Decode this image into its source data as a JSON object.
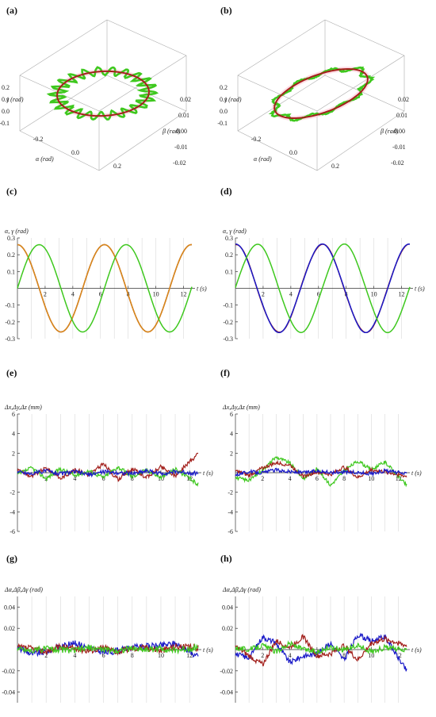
{
  "colors": {
    "red": "#a3201c",
    "green": "#3ec81e",
    "blue": "#1a1ac8",
    "orange": "#d88a1a",
    "pink": "#ffc4d4"
  },
  "panels": {
    "a": {
      "label": "(a)"
    },
    "b": {
      "label": "(b)"
    },
    "c": {
      "label": "(c)"
    },
    "d": {
      "label": "(d)"
    },
    "e": {
      "label": "(e)"
    },
    "f": {
      "label": "(f)"
    },
    "g": {
      "label": "(g)"
    },
    "h": {
      "label": "(h)"
    }
  },
  "chart_data": [
    {
      "id": "a",
      "type": "line3d",
      "axis_labels": {
        "y": "γ (rad)",
        "alpha": "α (rad)",
        "beta": "β (rad)"
      },
      "alpha_ticks": [
        "-0.2",
        "0.0",
        "0.2"
      ],
      "gamma_ticks": [
        "0.2",
        "0.1",
        "0.0",
        "-0.1"
      ],
      "beta_ticks": [
        "0.02",
        "0.01",
        "0.00",
        "-0.01",
        "-0.02"
      ],
      "curves": [
        {
          "color": "red",
          "shape": "ellipse"
        },
        {
          "color": "green",
          "shape": "ellipse with large oscillations"
        }
      ]
    },
    {
      "id": "b",
      "type": "line3d",
      "axis_labels": {
        "y": "γ (rad)",
        "alpha": "α (rad)",
        "beta": "β (rad)"
      },
      "alpha_ticks": [
        "-0.2",
        "0.0",
        "0.2"
      ],
      "gamma_ticks": [
        "0.2",
        "0.1",
        "0.0",
        "-0.1"
      ],
      "beta_ticks": [
        "0.02",
        "0.01",
        "0.00",
        "-0.01",
        "-0.02"
      ],
      "curves": [
        {
          "color": "red",
          "shape": "tilted ellipse"
        },
        {
          "color": "green",
          "shape": "tilted ellipse with oscillations"
        }
      ]
    },
    {
      "id": "c",
      "type": "line",
      "ylabel": "α, γ (rad)",
      "xlabel": "t (s)",
      "xlim": [
        0,
        12.6
      ],
      "ylim": [
        -0.3,
        0.3
      ],
      "xticks": [
        "2",
        "4",
        "6",
        "8",
        "10",
        "12"
      ],
      "yticks": [
        "0.3",
        "0.2",
        "0.1",
        "-0.1",
        "-0.2",
        "-0.3"
      ],
      "series": [
        {
          "color": "red",
          "values_desc": "α = 0.26 cos t",
          "x": [
            0,
            1.57,
            3.14,
            4.71,
            6.28,
            7.85,
            9.42,
            11.0,
            12.57
          ],
          "y": [
            0.26,
            0,
            -0.26,
            0,
            0.26,
            0,
            -0.26,
            0,
            0.26
          ]
        },
        {
          "color": "orange",
          "x": [
            0,
            1.57,
            3.14,
            4.71,
            6.28,
            7.85,
            9.42,
            11.0,
            12.57
          ],
          "y": [
            0.26,
            0,
            -0.26,
            0,
            0.26,
            0,
            -0.26,
            0,
            0.26
          ]
        },
        {
          "color": "green",
          "x": [
            0,
            1.57,
            3.14,
            4.71,
            6.28,
            7.85,
            9.42,
            11.0,
            12.57
          ],
          "y": [
            0,
            0.26,
            0,
            -0.26,
            0,
            0.26,
            0,
            -0.26,
            0
          ]
        }
      ]
    },
    {
      "id": "d",
      "type": "line",
      "ylabel": "α, γ (rad)",
      "xlabel": "t (s)",
      "xlim": [
        0,
        12.6
      ],
      "ylim": [
        -0.3,
        0.3
      ],
      "xticks": [
        "2",
        "4",
        "6",
        "8",
        "10",
        "12"
      ],
      "yticks": [
        "0.3",
        "0.2",
        "0.1",
        "-0.1",
        "-0.2",
        "-0.3"
      ],
      "series": [
        {
          "color": "red",
          "x": [
            0,
            1.57,
            3.14,
            4.71,
            6.28,
            7.85,
            9.42,
            11.0,
            12.57
          ],
          "y": [
            0.26,
            0,
            -0.26,
            0,
            0.26,
            0,
            -0.26,
            0,
            0.26
          ]
        },
        {
          "color": "blue",
          "x": [
            0,
            1.57,
            3.14,
            4.71,
            6.28,
            7.85,
            9.42,
            11.0,
            12.57
          ],
          "y": [
            0.26,
            0,
            -0.26,
            0,
            0.26,
            0,
            -0.26,
            0,
            0.26
          ]
        },
        {
          "color": "green",
          "x": [
            0,
            1.57,
            3.14,
            4.71,
            6.28,
            7.85,
            9.42,
            11.0,
            12.57
          ],
          "y": [
            0,
            0.26,
            0,
            -0.26,
            0,
            0.26,
            0,
            -0.26,
            0
          ]
        }
      ]
    },
    {
      "id": "e",
      "type": "line",
      "ylabel": "Δx,Δy,Δz (mm)",
      "xlabel": "t (s)",
      "xlim": [
        0,
        12.6
      ],
      "ylim": [
        -6,
        6
      ],
      "xticks": [
        "2",
        "4",
        "6",
        "8",
        "10",
        "12"
      ],
      "yticks": [
        "6",
        "4",
        "2",
        "-2",
        "-4",
        "-6"
      ],
      "series": [
        {
          "color": "red",
          "amplitude": 1.0,
          "x": [
            0,
            1,
            2,
            3,
            4,
            5,
            6,
            7,
            8,
            9,
            10,
            11,
            12
          ],
          "y": [
            0.3,
            -0.4,
            0.5,
            -0.6,
            0.3,
            -0.2,
            0.9,
            -0.7,
            0.4,
            -0.5,
            0.6,
            -0.3,
            1.1
          ]
        },
        {
          "color": "green",
          "amplitude": 0.9,
          "x": [
            0,
            1,
            2,
            3,
            4,
            5,
            6,
            7,
            8,
            9,
            10,
            11,
            12
          ],
          "y": [
            -0.2,
            0.5,
            -0.6,
            0.4,
            -0.3,
            0.2,
            -0.5,
            0.6,
            -0.4,
            0.3,
            -0.5,
            0.4,
            -0.6
          ]
        },
        {
          "color": "blue",
          "amplitude": 0.3,
          "x": [
            0,
            1,
            2,
            3,
            4,
            5,
            6,
            7,
            8,
            9,
            10,
            11,
            12
          ],
          "y": [
            0.1,
            -0.1,
            0.2,
            -0.1,
            0.1,
            -0.2,
            0.1,
            0,
            -0.1,
            0.2,
            -0.1,
            0.1,
            0
          ]
        }
      ]
    },
    {
      "id": "f",
      "type": "line",
      "ylabel": "Δx,Δy,Δz (mm)",
      "xlabel": "t (s)",
      "xlim": [
        0,
        12.6
      ],
      "ylim": [
        -6,
        6
      ],
      "xticks": [
        "2",
        "4",
        "6",
        "8",
        "10",
        "12"
      ],
      "yticks": [
        "6",
        "4",
        "2",
        "-2",
        "-4",
        "-6"
      ],
      "series": [
        {
          "color": "green",
          "x": [
            0,
            1,
            2,
            3,
            4,
            5,
            6,
            7,
            8,
            9,
            10,
            11,
            12
          ],
          "y": [
            -0.5,
            -0.8,
            0.3,
            1.6,
            1.0,
            -0.6,
            0.4,
            -1.3,
            0.2,
            1.2,
            0.3,
            1.1,
            -0.4
          ]
        },
        {
          "color": "red",
          "x": [
            0,
            1,
            2,
            3,
            4,
            5,
            6,
            7,
            8,
            9,
            10,
            11,
            12
          ],
          "y": [
            0.2,
            -0.3,
            0.5,
            1.0,
            0.8,
            -0.4,
            0.1,
            -0.2,
            0.6,
            -0.5,
            0.3,
            0.1,
            -0.2
          ]
        },
        {
          "color": "blue",
          "x": [
            0,
            1,
            2,
            3,
            4,
            5,
            6,
            7,
            8,
            9,
            10,
            11,
            12
          ],
          "y": [
            -0.2,
            0.1,
            0,
            0.3,
            0.1,
            0,
            0.2,
            0,
            0.1,
            0,
            -0.1,
            0.2,
            0
          ]
        }
      ]
    },
    {
      "id": "g",
      "type": "line",
      "ylabel": "Δα,Δβ,Δγ (rad)",
      "xlabel": "t (s)",
      "xlim": [
        0,
        12.6
      ],
      "ylim": [
        -0.05,
        0.05
      ],
      "xticks": [
        "2",
        "4",
        "6",
        "8",
        "10",
        "12"
      ],
      "yticks": [
        "0.04",
        "0.02",
        "-0.02",
        "-0.04"
      ],
      "series": [
        {
          "color": "blue",
          "x": [
            0,
            1,
            2,
            3,
            4,
            5,
            6,
            7,
            8,
            9,
            10,
            11,
            12
          ],
          "y": [
            0.002,
            -0.004,
            -0.002,
            0.003,
            0.006,
            0.002,
            -0.003,
            -0.001,
            0.002,
            0.003,
            0.004,
            0.006,
            -0.002
          ]
        },
        {
          "color": "red",
          "x": [
            0,
            1,
            2,
            3,
            4,
            5,
            6,
            7,
            8,
            9,
            10,
            11,
            12
          ],
          "y": [
            0.002,
            0.001,
            -0.002,
            0.003,
            0.001,
            -0.001,
            0.002,
            -0.002,
            0.001,
            0.002,
            -0.001,
            0.003,
            0.002
          ]
        },
        {
          "color": "green",
          "x": [
            0,
            1,
            2,
            3,
            4,
            5,
            6,
            7,
            8,
            9,
            10,
            11,
            12
          ],
          "y": [
            0.001,
            -0.001,
            0.001,
            0,
            -0.001,
            0.002,
            0,
            -0.001,
            0.001,
            0,
            0.001,
            -0.001,
            0.001
          ]
        }
      ]
    },
    {
      "id": "h",
      "type": "line",
      "ylabel": "Δα,Δβ,Δγ (rad)",
      "xlabel": "t (s)",
      "xlim": [
        0,
        12.6
      ],
      "ylim": [
        -0.05,
        0.05
      ],
      "xticks": [
        "2",
        "4",
        "6",
        "8",
        "10",
        "12"
      ],
      "yticks": [
        "0.04",
        "0.02",
        "-0.02",
        "-0.04"
      ],
      "series": [
        {
          "color": "blue",
          "x": [
            0,
            1,
            2,
            3,
            4,
            5,
            6,
            7,
            8,
            9,
            10,
            11,
            12
          ],
          "y": [
            -0.004,
            -0.008,
            0.012,
            0.006,
            -0.012,
            -0.006,
            -0.004,
            0.006,
            -0.01,
            0.014,
            0.008,
            0.012,
            -0.008
          ]
        },
        {
          "color": "red",
          "x": [
            0,
            1,
            2,
            3,
            4,
            5,
            6,
            7,
            8,
            9,
            10,
            11,
            12
          ],
          "y": [
            0.003,
            -0.006,
            -0.014,
            0.008,
            0.002,
            0.012,
            -0.006,
            -0.004,
            0.004,
            -0.01,
            0.006,
            0.01,
            0.006
          ]
        },
        {
          "color": "green",
          "x": [
            0,
            1,
            2,
            3,
            4,
            5,
            6,
            7,
            8,
            9,
            10,
            11,
            12
          ],
          "y": [
            0.002,
            0,
            0.004,
            -0.002,
            0.006,
            0,
            -0.002,
            0.002,
            0,
            0.004,
            -0.002,
            0.002,
            0
          ]
        }
      ]
    }
  ]
}
